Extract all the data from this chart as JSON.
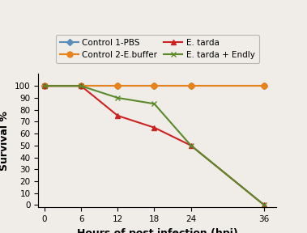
{
  "x": [
    0,
    6,
    12,
    18,
    24,
    36
  ],
  "series": [
    {
      "label": "Control 1-PBS",
      "y": [
        100,
        100,
        100,
        100,
        100,
        100
      ],
      "color": "#5B8DB8",
      "marker": "D",
      "markersize": 4,
      "linestyle": "-",
      "linewidth": 1.5
    },
    {
      "label": "Control 2-E.buffer",
      "y": [
        100,
        100,
        100,
        100,
        100,
        100
      ],
      "color": "#E8821A",
      "marker": "o",
      "markersize": 5,
      "linestyle": "-",
      "linewidth": 1.5
    },
    {
      "label": "E. tarda",
      "y": [
        100,
        100,
        75,
        65,
        50,
        0
      ],
      "color": "#CC2222",
      "marker": "^",
      "markersize": 5,
      "linestyle": "-",
      "linewidth": 1.5
    },
    {
      "label": "E. tarda + Endly",
      "y": [
        100,
        100,
        90,
        85,
        50,
        0
      ],
      "color": "#5A8A2A",
      "marker": "x",
      "markersize": 5,
      "linestyle": "-",
      "linewidth": 1.5
    }
  ],
  "xlabel": "Hours of post infection (hpi)",
  "ylabel": "Survival %",
  "xlim": [
    -1,
    38
  ],
  "ylim": [
    -2,
    110
  ],
  "xticks": [
    0,
    6,
    12,
    18,
    24,
    36
  ],
  "yticks": [
    0,
    10,
    20,
    30,
    40,
    50,
    60,
    70,
    80,
    90,
    100
  ],
  "legend_fontsize": 7.5,
  "xlabel_fontsize": 9,
  "ylabel_fontsize": 9,
  "tick_fontsize": 7.5,
  "background_color": "#f0ede8"
}
